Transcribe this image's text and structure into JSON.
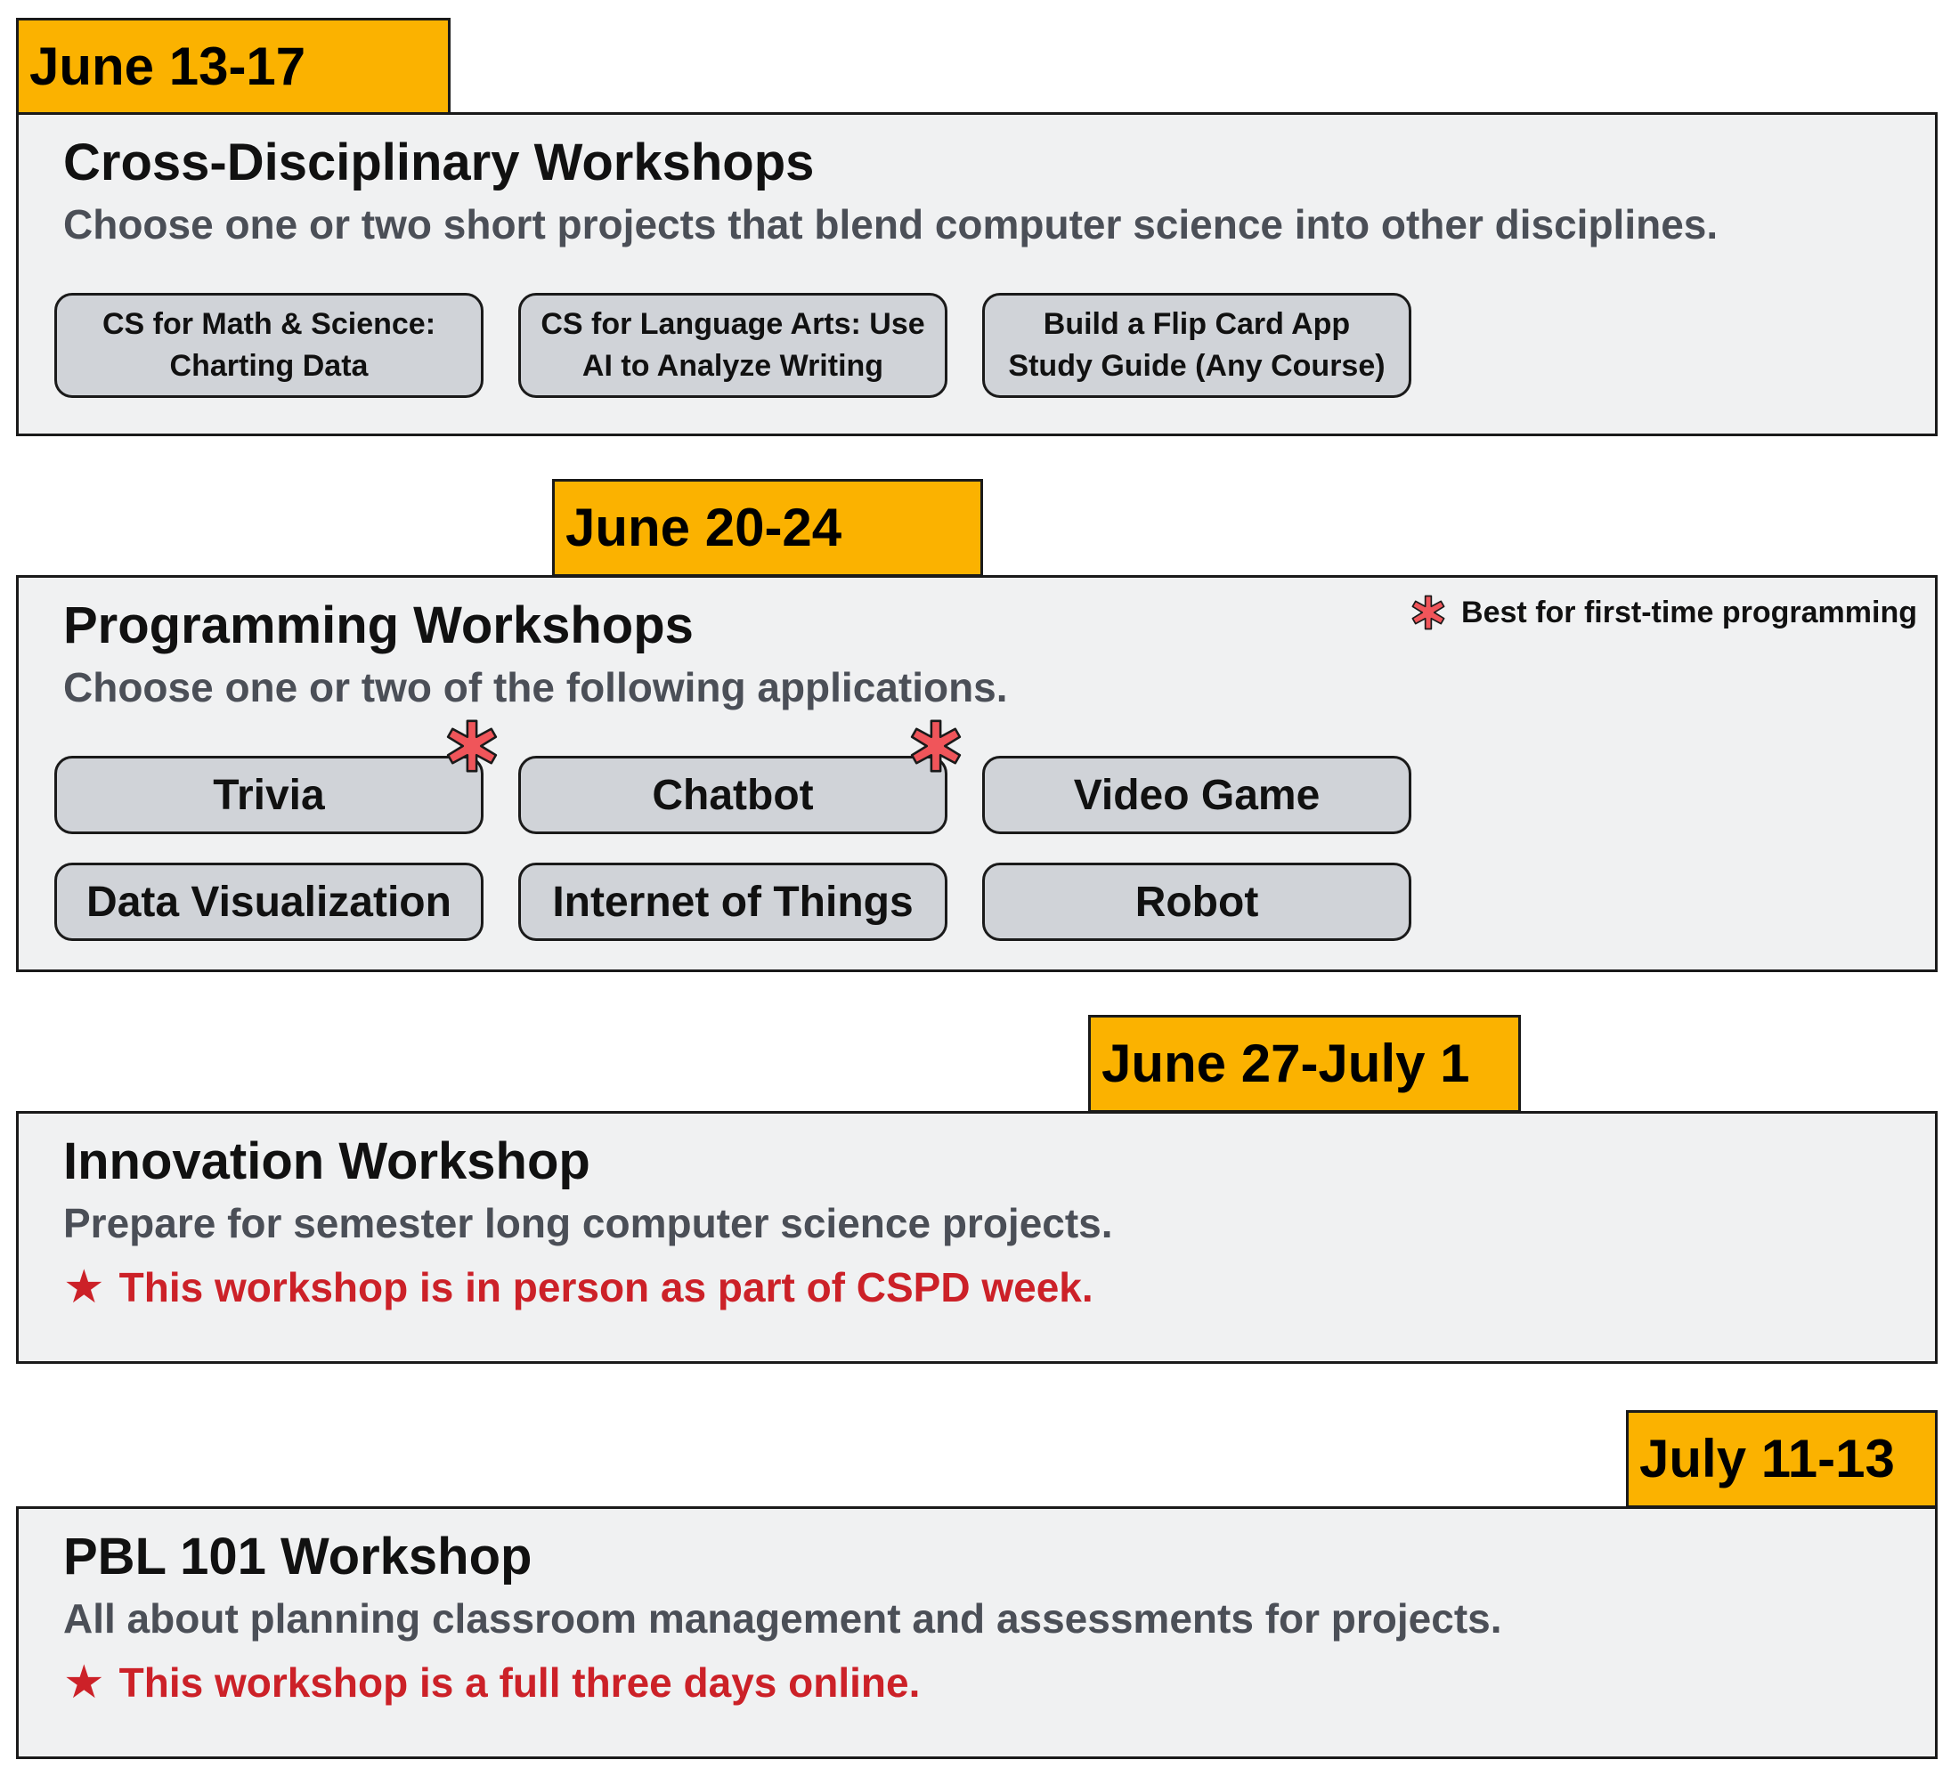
{
  "colors": {
    "tab": "#fbb200",
    "panel": "#f0f1f2",
    "chip": "#d0d3d8",
    "note": "#cc2128",
    "asterisk": "#f0555a"
  },
  "icons": {
    "asterisk": "asterisk-icon",
    "star": "star-icon"
  },
  "sections": [
    {
      "date": "June 13-17",
      "title": "Cross-Disciplinary Workshops",
      "description": "Choose one or two short projects that blend computer science into other disciplines.",
      "options": [
        [
          "CS for Math & Science:",
          "Charting Data"
        ],
        [
          "CS for Language Arts: Use",
          "AI to Analyze Writing"
        ],
        [
          "Build a Flip Card App",
          "Study Guide (Any Course)"
        ]
      ]
    },
    {
      "date": "June 20-24",
      "title": "Programming Workshops",
      "description": "Choose one or two of the following applications.",
      "legend": "Best for first-time programming",
      "options": [
        {
          "label": "Trivia",
          "first_time": true
        },
        {
          "label": "Chatbot",
          "first_time": true
        },
        {
          "label": "Video Game",
          "first_time": false
        },
        {
          "label": "Data Visualization",
          "first_time": false
        },
        {
          "label": "Internet of Things",
          "first_time": false
        },
        {
          "label": "Robot",
          "first_time": false
        }
      ]
    },
    {
      "date": "June 27-July 1",
      "title": "Innovation Workshop",
      "description": "Prepare for semester long computer science projects.",
      "note": "This workshop is in person as part of CSPD week."
    },
    {
      "date": "July 11-13",
      "title": "PBL 101 Workshop",
      "description": "All about planning classroom management and assessments for projects.",
      "note": "This workshop is a full three days online."
    }
  ]
}
